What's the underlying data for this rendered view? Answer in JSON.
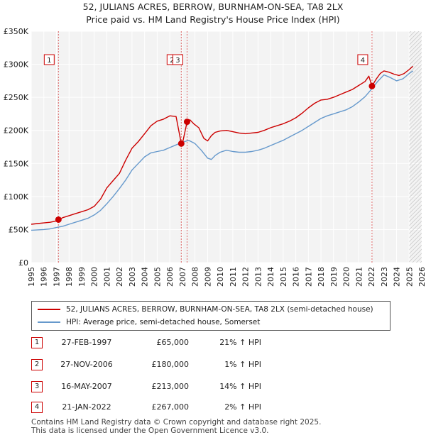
{
  "title_line1": "52, JULIANS ACRES, BERROW, BURNHAM-ON-SEA, TA8 2LX",
  "title_line2": "Price paid vs. HM Land Registry's House Price Index (HPI)",
  "legend": {
    "property": "52, JULIANS ACRES, BERROW, BURNHAM-ON-SEA, TA8 2LX (semi-detached house)",
    "hpi": "HPI: Average price, semi-detached house, Somerset",
    "property_color": "#cc0000",
    "hpi_color": "#6699cc"
  },
  "sales": [
    {
      "num": "1",
      "date": "27-FEB-1997",
      "price": "£65,000",
      "hpi": "21% ↑ HPI",
      "year": 1997.16,
      "value": 65000
    },
    {
      "num": "2",
      "date": "27-NOV-2006",
      "price": "£180,000",
      "hpi": "1% ↑ HPI",
      "year": 2006.91,
      "value": 180000
    },
    {
      "num": "3",
      "date": "16-MAY-2007",
      "price": "£213,000",
      "hpi": "14% ↑ HPI",
      "year": 2007.37,
      "value": 213000
    },
    {
      "num": "4",
      "date": "21-JAN-2022",
      "price": "£267,000",
      "hpi": "2% ↑ HPI",
      "year": 2022.05,
      "value": 267000
    }
  ],
  "footer_line1": "Contains HM Land Registry data © Crown copyright and database right 2025.",
  "footer_line2": "This data is licensed under the Open Government Licence v3.0.",
  "chart_data": {
    "type": "line",
    "title": "Price paid vs. HM Land Registry's House Price Index (HPI)",
    "xlabel": "",
    "ylabel": "",
    "xlim": [
      1995,
      2026
    ],
    "ylim": [
      0,
      350000
    ],
    "x_ticks": [
      "1995",
      "1996",
      "1997",
      "1998",
      "1999",
      "2000",
      "2001",
      "2002",
      "2003",
      "2004",
      "2005",
      "2006",
      "2007",
      "2008",
      "2009",
      "2010",
      "2011",
      "2012",
      "2013",
      "2014",
      "2015",
      "2016",
      "2017",
      "2018",
      "2019",
      "2020",
      "2021",
      "2022",
      "2023",
      "2024",
      "2025",
      "2026"
    ],
    "y_ticks": [
      {
        "value": 0,
        "label": "£0"
      },
      {
        "value": 50000,
        "label": "£50K"
      },
      {
        "value": 100000,
        "label": "£100K"
      },
      {
        "value": 150000,
        "label": "£150K"
      },
      {
        "value": 200000,
        "label": "£200K"
      },
      {
        "value": 250000,
        "label": "£250K"
      },
      {
        "value": 300000,
        "label": "£300K"
      },
      {
        "value": 350000,
        "label": "£350K"
      }
    ],
    "grid": true,
    "series": [
      {
        "name": "52, JULIANS ACRES, BERROW, BURNHAM-ON-SEA, TA8 2LX (semi-detached house)",
        "color": "#cc0000",
        "x": [
          1995.0,
          1995.5,
          1996.0,
          1996.5,
          1997.0,
          1997.16,
          1997.5,
          1998.0,
          1998.5,
          1999.0,
          1999.5,
          2000.0,
          2000.5,
          2001.0,
          2001.5,
          2002.0,
          2002.5,
          2003.0,
          2003.5,
          2004.0,
          2004.5,
          2005.0,
          2005.5,
          2006.0,
          2006.5,
          2006.91,
          2007.0,
          2007.37,
          2007.6,
          2007.9,
          2008.3,
          2008.7,
          2009.0,
          2009.3,
          2009.6,
          2010.0,
          2010.5,
          2011.0,
          2011.5,
          2012.0,
          2012.5,
          2013.0,
          2013.5,
          2014.0,
          2014.5,
          2015.0,
          2015.5,
          2016.0,
          2016.5,
          2017.0,
          2017.5,
          2018.0,
          2018.5,
          2019.0,
          2019.5,
          2020.0,
          2020.5,
          2021.0,
          2021.5,
          2021.8,
          2022.05,
          2022.4,
          2022.7,
          2023.0,
          2023.4,
          2023.8,
          2024.2,
          2024.6,
          2025.0,
          2025.3
        ],
        "y": [
          58000,
          59000,
          60000,
          61000,
          63000,
          65000,
          68000,
          71000,
          74000,
          77000,
          80000,
          85000,
          96000,
          113000,
          124000,
          135000,
          155000,
          173000,
          183000,
          195000,
          207000,
          214000,
          217000,
          222000,
          221000,
          180000,
          180000,
          213000,
          216000,
          210000,
          204000,
          188000,
          184000,
          192000,
          197000,
          199000,
          200000,
          198000,
          196000,
          195000,
          196000,
          197000,
          200000,
          204000,
          207000,
          210000,
          214000,
          219000,
          226000,
          234000,
          241000,
          246000,
          247000,
          250000,
          254000,
          258000,
          262000,
          268000,
          274000,
          282000,
          267000,
          278000,
          286000,
          290000,
          288000,
          285000,
          283000,
          286000,
          292000,
          297000
        ]
      },
      {
        "name": "HPI: Average price, semi-detached house, Somerset",
        "color": "#6699cc",
        "x": [
          1995.0,
          1995.5,
          1996.0,
          1996.5,
          1997.0,
          1997.5,
          1998.0,
          1998.5,
          1999.0,
          1999.5,
          2000.0,
          2000.5,
          2001.0,
          2001.5,
          2002.0,
          2002.5,
          2003.0,
          2003.5,
          2004.0,
          2004.5,
          2005.0,
          2005.5,
          2006.0,
          2006.5,
          2007.0,
          2007.5,
          2008.0,
          2008.5,
          2009.0,
          2009.3,
          2009.6,
          2010.0,
          2010.5,
          2011.0,
          2011.5,
          2012.0,
          2012.5,
          2013.0,
          2013.5,
          2014.0,
          2014.5,
          2015.0,
          2015.5,
          2016.0,
          2016.5,
          2017.0,
          2017.5,
          2018.0,
          2018.5,
          2019.0,
          2019.5,
          2020.0,
          2020.5,
          2021.0,
          2021.5,
          2022.0,
          2022.5,
          2023.0,
          2023.5,
          2024.0,
          2024.5,
          2025.0,
          2025.3
        ],
        "y": [
          49000,
          49500,
          50000,
          51000,
          53000,
          55000,
          58000,
          61000,
          64000,
          67000,
          72000,
          79000,
          89000,
          100000,
          112000,
          125000,
          140000,
          150000,
          160000,
          166000,
          168000,
          170000,
          174000,
          178000,
          182000,
          185000,
          180000,
          170000,
          158000,
          156000,
          162000,
          167000,
          170000,
          168000,
          167000,
          167000,
          168000,
          170000,
          173000,
          177000,
          181000,
          185000,
          190000,
          195000,
          200000,
          206000,
          212000,
          218000,
          222000,
          225000,
          228000,
          231000,
          236000,
          243000,
          251000,
          262000,
          274000,
          284000,
          280000,
          275000,
          278000,
          286000,
          290000
        ]
      }
    ]
  }
}
